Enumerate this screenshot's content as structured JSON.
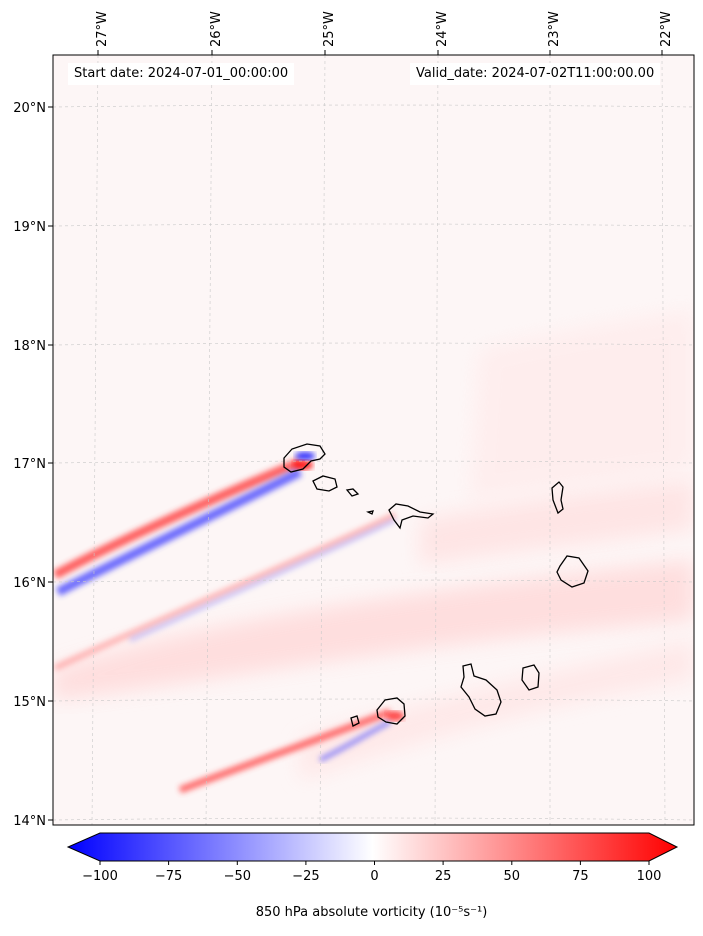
{
  "map": {
    "start_label": "Start date:",
    "start_date": "2024-07-01_00:00:00",
    "valid_label": "Valid_date:",
    "valid_date": "2024-07-02T11:00:00.00",
    "lon_labels": [
      "27°W",
      "26°W",
      "25°W",
      "24°W",
      "23°W",
      "22°W"
    ],
    "lat_labels": [
      "20°N",
      "19°N",
      "18°N",
      "17°N",
      "16°N",
      "15°N",
      "14°N"
    ],
    "lon_range": [
      -27.2,
      -21.7
    ],
    "lat_range": [
      14.0,
      20.3
    ]
  },
  "colorbar": {
    "title": "850 hPa absolute vorticity",
    "units": "(10⁻⁵s⁻¹)",
    "tick_labels": [
      "−100",
      "−75",
      "−50",
      "−25",
      "0",
      "25",
      "50",
      "75",
      "100"
    ],
    "min": -100,
    "max": 100,
    "colors": {
      "negative": "#0000ff",
      "neutral": "#ffffff",
      "positive": "#ff0000"
    }
  }
}
